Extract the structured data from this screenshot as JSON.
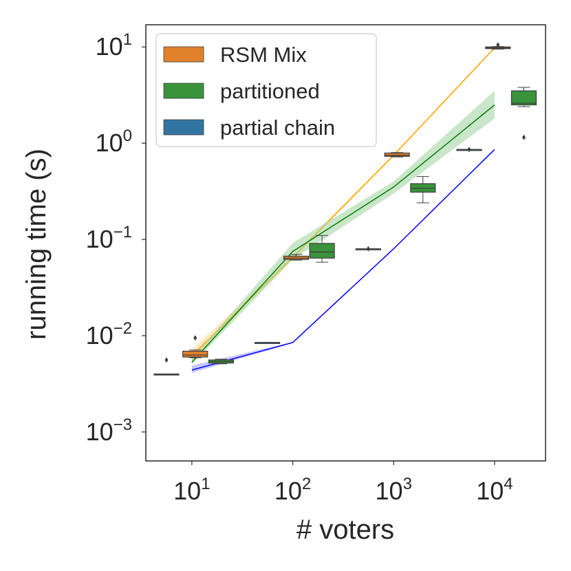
{
  "chart_data": {
    "type": "box+line",
    "xlabel": "# voters",
    "ylabel": "running time (s)",
    "x_scale": "log",
    "y_scale": "log",
    "xlim": [
      3.5,
      32000
    ],
    "ylim": [
      0.0005,
      17
    ],
    "x_ticks": [
      {
        "value": 10,
        "base": "10",
        "exp": "1"
      },
      {
        "value": 100,
        "base": "10",
        "exp": "2"
      },
      {
        "value": 1000,
        "base": "10",
        "exp": "3"
      },
      {
        "value": 10000,
        "base": "10",
        "exp": "4"
      }
    ],
    "y_ticks": [
      {
        "value": 0.001,
        "base": "10",
        "exp": "−3"
      },
      {
        "value": 0.01,
        "base": "10",
        "exp": "−2"
      },
      {
        "value": 0.1,
        "base": "10",
        "exp": "−1"
      },
      {
        "value": 1,
        "base": "10",
        "exp": "0"
      },
      {
        "value": 10,
        "base": "10",
        "exp": "1"
      }
    ],
    "legend": {
      "placement": "top-left",
      "entries": [
        {
          "label": "RSM Mix",
          "color": "#e1812c"
        },
        {
          "label": "partitioned",
          "color": "#3a923a"
        },
        {
          "label": "partial chain",
          "color": "#3274a1"
        }
      ]
    },
    "boxes": [
      {
        "series": "partial chain",
        "x": 5.6,
        "q1": 0.004,
        "median": 0.004,
        "q3": 0.004,
        "whisker_low": 0.004,
        "whisker_high": 0.004,
        "outliers": [
          0.0056
        ]
      },
      {
        "series": "RSM Mix",
        "x": 10.8,
        "q1": 0.006,
        "median": 0.0063,
        "q3": 0.0069,
        "whisker_low": 0.0059,
        "whisker_high": 0.0071,
        "outliers": [
          0.0095
        ]
      },
      {
        "series": "partitioned",
        "x": 19.5,
        "q1": 0.0052,
        "median": 0.0054,
        "q3": 0.0056,
        "whisker_low": 0.0051,
        "whisker_high": 0.0057,
        "outliers": []
      },
      {
        "series": "partial chain",
        "x": 56,
        "q1": 0.0085,
        "median": 0.0085,
        "q3": 0.0085,
        "whisker_low": 0.0085,
        "whisker_high": 0.0085,
        "outliers": []
      },
      {
        "series": "RSM Mix",
        "x": 108,
        "q1": 0.062,
        "median": 0.064,
        "q3": 0.067,
        "whisker_low": 0.061,
        "whisker_high": 0.07,
        "outliers": []
      },
      {
        "series": "partitioned",
        "x": 195,
        "q1": 0.064,
        "median": 0.074,
        "q3": 0.091,
        "whisker_low": 0.058,
        "whisker_high": 0.11,
        "outliers": []
      },
      {
        "series": "partial chain",
        "x": 560,
        "q1": 0.08,
        "median": 0.08,
        "q3": 0.08,
        "whisker_low": 0.08,
        "whisker_high": 0.08,
        "outliers": [
          0.08
        ]
      },
      {
        "series": "RSM Mix",
        "x": 1080,
        "q1": 0.73,
        "median": 0.75,
        "q3": 0.79,
        "whisker_low": 0.72,
        "whisker_high": 0.8,
        "outliers": []
      },
      {
        "series": "partitioned",
        "x": 1950,
        "q1": 0.31,
        "median": 0.34,
        "q3": 0.38,
        "whisker_low": 0.24,
        "whisker_high": 0.45,
        "outliers": []
      },
      {
        "series": "partial chain",
        "x": 5600,
        "q1": 0.86,
        "median": 0.86,
        "q3": 0.86,
        "whisker_low": 0.86,
        "whisker_high": 0.86,
        "outliers": [
          0.86
        ]
      },
      {
        "series": "RSM Mix",
        "x": 10800,
        "q1": 9.6,
        "median": 9.8,
        "q3": 10.0,
        "whisker_low": 9.5,
        "whisker_high": 10.1,
        "outliers": [
          10.5
        ]
      },
      {
        "series": "partitioned",
        "x": 19500,
        "q1": 2.5,
        "median": 2.6,
        "q3": 3.5,
        "whisker_low": 2.4,
        "whisker_high": 3.8,
        "outliers": [
          1.15
        ]
      }
    ],
    "fit_lines": [
      {
        "series": "RSM Mix",
        "color": "#ffa500",
        "band_color": "#ffd98a",
        "x": [
          10,
          100,
          1000,
          10000
        ],
        "y": [
          0.0062,
          0.065,
          0.75,
          9.8
        ],
        "band_low": [
          0.0056,
          0.062,
          0.73,
          9.6
        ],
        "band_high": [
          0.0072,
          0.068,
          0.77,
          10.0
        ]
      },
      {
        "series": "partitioned",
        "color": "#008000",
        "band_color": "#9ed29e",
        "x": [
          10,
          100,
          1000,
          10000
        ],
        "y": [
          0.0053,
          0.075,
          0.35,
          2.5
        ],
        "band_low": [
          0.005,
          0.062,
          0.3,
          1.8
        ],
        "band_high": [
          0.0058,
          0.092,
          0.4,
          3.5
        ]
      },
      {
        "series": "partial chain",
        "color": "#0000ff",
        "band_color": "#9a9aff",
        "x": [
          10,
          100,
          1000,
          10000
        ],
        "y": [
          0.0044,
          0.0085,
          0.08,
          0.86
        ],
        "band_low": [
          0.0041,
          0.0084,
          0.079,
          0.85
        ],
        "band_high": [
          0.0049,
          0.0086,
          0.081,
          0.87
        ]
      }
    ]
  }
}
